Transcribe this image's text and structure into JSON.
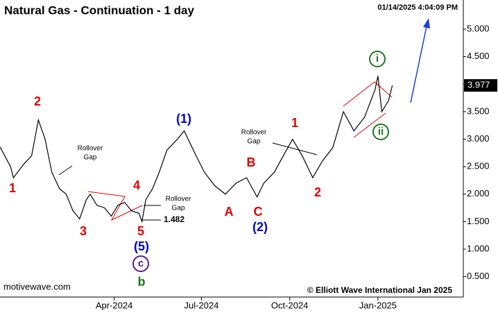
{
  "chart_data": {
    "type": "line",
    "title": "Natural Gas - Continuation - 1 day",
    "timestamp": "01/14/2025 4:04:09 PM",
    "source": "motivewave.com",
    "copyright": "© Elliott Wave International Jan 2025",
    "x": [
      -28,
      -17,
      -14,
      -3,
      5,
      12,
      19,
      26,
      34,
      41,
      48,
      55,
      62,
      66,
      73,
      81,
      88,
      95,
      102,
      109,
      117,
      120,
      124,
      131,
      138,
      146,
      157,
      164,
      175,
      185,
      196,
      207,
      218,
      229,
      240,
      247,
      258,
      269,
      277,
      287,
      298,
      308,
      319,
      330,
      341,
      352,
      363,
      366,
      370,
      377,
      381
    ],
    "series": [
      {
        "name": "Natural Gas",
        "color": "#000000",
        "values": [
          2.86,
          2.5,
          2.3,
          2.55,
          2.7,
          3.35,
          3.0,
          2.4,
          2.1,
          2.0,
          1.7,
          1.55,
          1.9,
          2.0,
          1.8,
          1.75,
          1.6,
          1.8,
          1.85,
          1.7,
          1.65,
          1.5,
          1.9,
          2.1,
          2.4,
          2.8,
          3.0,
          3.15,
          2.75,
          2.4,
          2.15,
          2.0,
          2.2,
          2.3,
          1.95,
          2.2,
          2.4,
          2.75,
          3.0,
          2.7,
          2.3,
          2.6,
          2.85,
          3.5,
          3.15,
          3.4,
          3.9,
          4.15,
          3.5,
          3.7,
          3.977
        ]
      }
    ],
    "last_price": {
      "value": 3.977,
      "label": "3.977"
    },
    "xlim": [
      -28,
      455
    ],
    "xticks": [
      {
        "value": 91,
        "label": "Apr-2024"
      },
      {
        "value": 182,
        "label": "Jul-2024"
      },
      {
        "value": 274,
        "label": "Oct-2024"
      },
      {
        "value": 366,
        "label": "Jan-2025"
      }
    ],
    "ylim": [
      0.13,
      5.53
    ],
    "yticks": [
      {
        "value": 0.5,
        "label": "0.500"
      },
      {
        "value": 1,
        "label": "1.000"
      },
      {
        "value": 1.5,
        "label": "1.500"
      },
      {
        "value": 2,
        "label": "2.000"
      },
      {
        "value": 2.5,
        "label": "2.500"
      },
      {
        "value": 3,
        "label": "3.000"
      },
      {
        "value": 3.5,
        "label": "3.500"
      },
      {
        "value": 4,
        "label": "4.000"
      },
      {
        "value": 4.5,
        "label": "4.500"
      },
      {
        "value": 5,
        "label": "5.000"
      }
    ],
    "annotations": [
      {
        "text": "1",
        "color": "#e00000"
      },
      {
        "text": "2",
        "color": "#e00000"
      },
      {
        "text": "3",
        "color": "#e00000"
      },
      {
        "text": "4",
        "color": "#e00000"
      },
      {
        "text": "5",
        "color": "#e00000"
      },
      {
        "text": "(5)",
        "color": "#0000cc"
      },
      {
        "text": "c",
        "color": "#5b1a8a",
        "circled": true
      },
      {
        "text": "b",
        "color": "#1a7a1a"
      },
      {
        "text": "(1)",
        "color": "#0000cc"
      },
      {
        "text": "A",
        "color": "#e00000"
      },
      {
        "text": "B",
        "color": "#e00000"
      },
      {
        "text": "C",
        "color": "#e00000"
      },
      {
        "text": "(2)",
        "color": "#0000cc"
      },
      {
        "text": "1",
        "color": "#e00000"
      },
      {
        "text": "2",
        "color": "#e00000"
      },
      {
        "text": "i",
        "color": "#1a7a1a",
        "circled": true
      },
      {
        "text": "ii",
        "color": "#1a7a1a",
        "circled": true
      },
      {
        "text": "Rollover",
        "color": "#000000"
      },
      {
        "text": "Gap",
        "color": "#000000"
      },
      {
        "text": "Rollover",
        "color": "#000000"
      },
      {
        "text": "Gap",
        "color": "#000000"
      },
      {
        "text": "Rollover",
        "color": "#000000"
      },
      {
        "text": "Gap",
        "color": "#000000"
      },
      {
        "text": "1.482",
        "color": "#000000"
      }
    ]
  }
}
